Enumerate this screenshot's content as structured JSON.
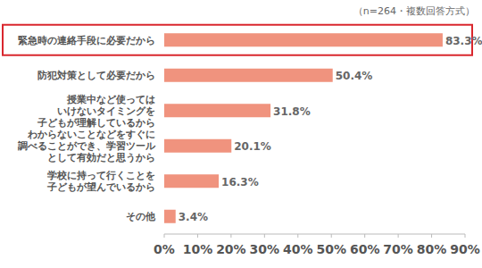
{
  "chart_data": {
    "type": "bar",
    "orientation": "horizontal",
    "subtitle": "（n=264・複数回答方式）",
    "categories": [
      "緊急時の連絡手段に必要だから",
      "防犯対策として必要だから",
      "授業中など使っては\nいけないタイミングを\n子どもが理解しているから",
      "わからないことなどをすぐに\n調べることができ、学習ツール\nとして有効だと思うから",
      "学校に持って行くことを\n子どもが望んでいるから",
      "その他"
    ],
    "values": [
      83.3,
      50.4,
      31.8,
      20.1,
      16.3,
      3.4
    ],
    "value_labels": [
      "83.3%",
      "50.4%",
      "31.8%",
      "20.1%",
      "16.3%",
      "3.4%"
    ],
    "data_labels": true,
    "color": "#f0937e",
    "xlim": [
      0,
      90
    ],
    "xticks": [
      {
        "value": 0,
        "label": "0%"
      },
      {
        "value": 10,
        "label": "10%"
      },
      {
        "value": 20,
        "label": "20%"
      },
      {
        "value": 30,
        "label": "30%"
      },
      {
        "value": 40,
        "label": "40%"
      },
      {
        "value": 50,
        "label": "50%"
      },
      {
        "value": 60,
        "label": "60%"
      },
      {
        "value": 70,
        "label": "70%"
      },
      {
        "value": 80,
        "label": "80%"
      },
      {
        "value": 90,
        "label": "90%"
      }
    ],
    "grid": false
  }
}
